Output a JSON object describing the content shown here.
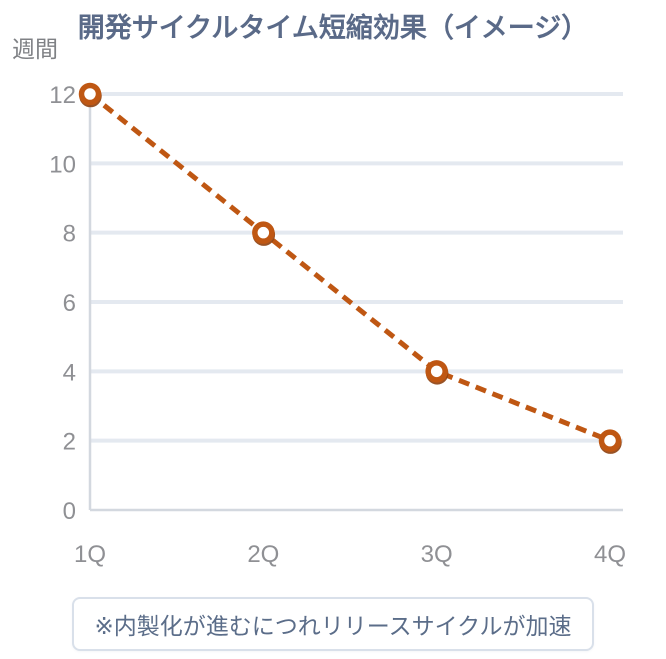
{
  "chart_data": {
    "type": "line",
    "title": "開発サイクルタイム短縮効果（イメージ）",
    "ylabel": "週間",
    "categories": [
      "1Q",
      "2Q",
      "3Q",
      "4Q"
    ],
    "values": [
      12,
      8,
      4,
      2
    ],
    "yticks": [
      0,
      2,
      4,
      6,
      8,
      10,
      12
    ],
    "ylim": [
      0,
      12
    ],
    "grid": true,
    "legend": false,
    "line_style": "dashed",
    "marker": "circle-open"
  },
  "note": {
    "text": "※内製化が進むにつれリリースサイクルが加速"
  },
  "colors": {
    "line": "#BF5713",
    "marker_fill": "#FFFFFF",
    "marker_ring": "#BF5713",
    "marker_shadow": "#8E400E",
    "grid": "#E4E9F0",
    "axis": "#D3D8DF",
    "title_text": "#5A6A88",
    "tick_text": "#8F9094",
    "unit_text": "#7F8185",
    "note_text": "#5B6D89",
    "note_border": "#D9E0EA",
    "background": "#FFFFFF"
  }
}
